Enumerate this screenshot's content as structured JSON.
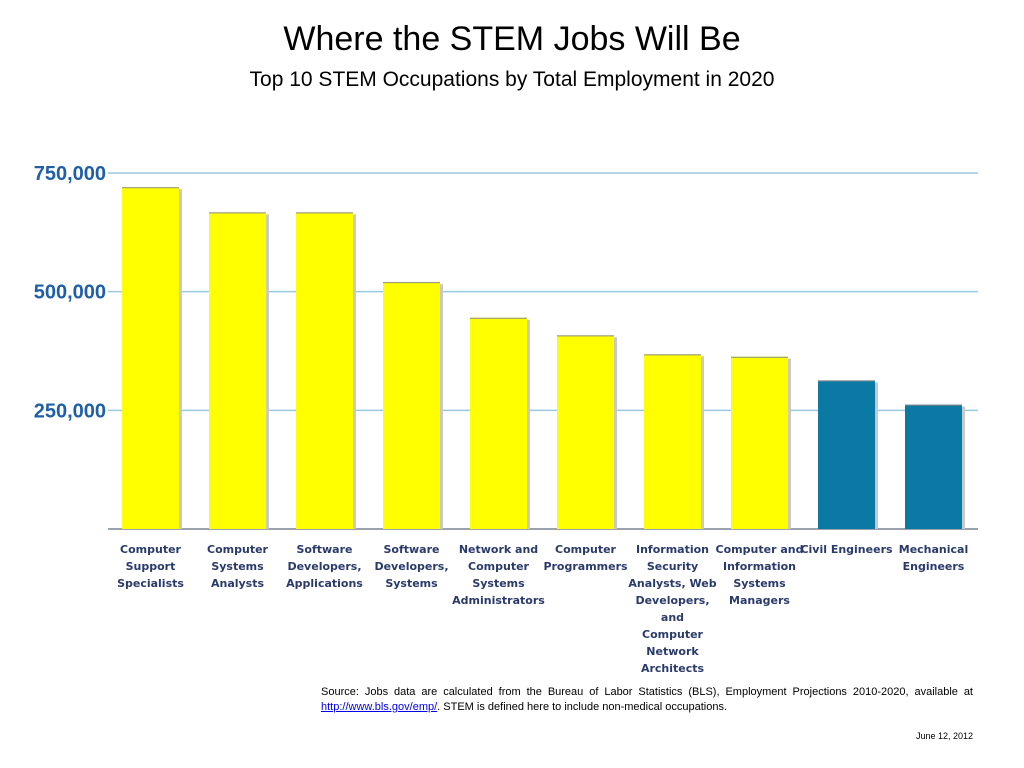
{
  "chart_data": {
    "type": "bar",
    "title": "Where the STEM Jobs Will Be",
    "subtitle": "Top 10 STEM Occupations by Total Employment in 2020",
    "categories": [
      "Computer Support Specialists",
      "Computer Systems Analysts",
      "Software Developers, Applications",
      "Software Developers, Systems",
      "Network and Computer Systems Administrators",
      "Computer Programmers",
      "Information Security Analysts, Web Developers, and Computer Network Architects",
      "Computer and Information Systems Managers",
      "Civil Engineers",
      "Mechanical Engineers"
    ],
    "category_lines": [
      [
        "Computer",
        "Support",
        "Specialists"
      ],
      [
        "Computer",
        "Systems Analysts"
      ],
      [
        "Software",
        "Developers,",
        "Applications"
      ],
      [
        "Software",
        "Developers,",
        "Systems"
      ],
      [
        "Network and",
        "Computer",
        "Systems",
        "Administrators"
      ],
      [
        "Computer",
        "Programmers"
      ],
      [
        "Information",
        "Security",
        "Analysts, Web",
        "Developers, and",
        "Computer",
        "Network",
        "Architects"
      ],
      [
        "Computer and",
        "Information",
        "Systems",
        "Managers"
      ],
      [
        "Civil Engineers"
      ],
      [
        "Mechanical",
        "Engineers"
      ]
    ],
    "values": [
      720000,
      667000,
      667000,
      520000,
      445000,
      408000,
      368000,
      363000,
      313000,
      262000
    ],
    "bar_colors": [
      "#ffff00",
      "#ffff00",
      "#ffff00",
      "#ffff00",
      "#ffff00",
      "#ffff00",
      "#ffff00",
      "#ffff00",
      "#0a7aa5",
      "#0a7aa5"
    ],
    "yticks": [
      250000,
      500000,
      750000
    ],
    "ytick_labels": [
      "250,000",
      "500,000",
      "750,000"
    ],
    "ylim": [
      0,
      750000
    ],
    "grid": true,
    "grid_color": "#9cc8e0",
    "tick_color": "#1f5fa8"
  },
  "footer": {
    "source_prefix": "Source: Jobs data are calculated from the Bureau of Labor Statistics (BLS), Employment Projections 2010-2020, available at ",
    "source_link": "http://www.bls.gov/emp/",
    "source_suffix": ". STEM is defined here to include non-medical occupations.",
    "date": "June 12, 2012"
  }
}
